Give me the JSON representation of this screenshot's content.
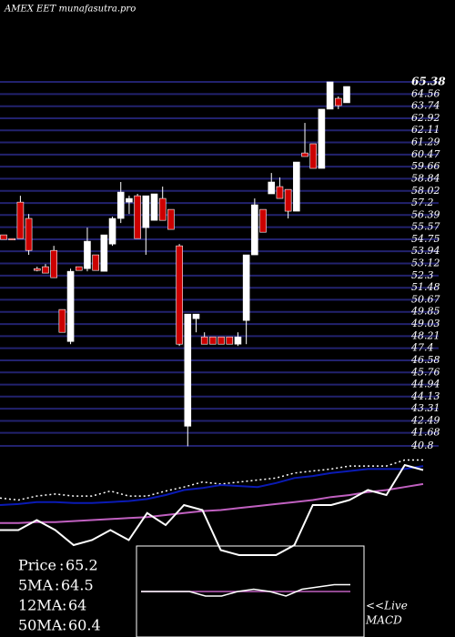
{
  "chart_data": {
    "type": "candlestick",
    "title": "AMEX  EET munafasutra.pro",
    "open": [
      55.05,
      54.8,
      57.26,
      56.16,
      52.77,
      52.9,
      54.0,
      50.01,
      47.85,
      52.9,
      52.77,
      53.7,
      52.59,
      54.43,
      56.16,
      57.26,
      57.69,
      55.54,
      56.03,
      57.51,
      56.77,
      54.31,
      42.13,
      49.39,
      48.16,
      48.16,
      48.16,
      48.16,
      47.67,
      49.27,
      53.7,
      56.77,
      57.82,
      58.31,
      58.12,
      56.65,
      60.58,
      61.2,
      59.54,
      63.54,
      64.27,
      63.97
    ],
    "high": [
      55.05,
      54.8,
      57.69,
      56.46,
      52.9,
      53.08,
      54.31,
      50.01,
      52.77,
      52.9,
      55.54,
      53.7,
      55.05,
      56.28,
      58.62,
      57.7,
      57.82,
      57.69,
      57.82,
      58.31,
      56.77,
      54.43,
      49.7,
      49.7,
      48.47,
      48.16,
      48.16,
      48.16,
      48.47,
      53.7,
      57.51,
      56.77,
      59.23,
      58.93,
      58.12,
      59.97,
      62.61,
      61.2,
      63.54,
      65.38,
      64.4,
      65.07
    ],
    "low": [
      54.74,
      54.74,
      54.8,
      53.7,
      52.59,
      52.47,
      52.16,
      48.47,
      47.67,
      52.65,
      52.59,
      52.65,
      52.59,
      54.31,
      55.85,
      56.46,
      54.8,
      53.7,
      56.03,
      56.03,
      55.42,
      47.55,
      40.78,
      48.47,
      47.67,
      47.67,
      47.67,
      47.67,
      47.55,
      47.67,
      53.7,
      55.23,
      57.82,
      57.51,
      56.16,
      56.65,
      60.34,
      59.54,
      59.54,
      63.54,
      63.54,
      63.97
    ],
    "close": [
      54.74,
      54.74,
      54.8,
      54.0,
      52.65,
      52.47,
      52.16,
      48.47,
      52.59,
      52.65,
      54.62,
      52.65,
      55.05,
      56.16,
      57.94,
      57.51,
      54.8,
      57.69,
      57.82,
      56.03,
      55.42,
      47.67,
      49.7,
      49.7,
      47.67,
      47.67,
      47.67,
      47.67,
      48.16,
      53.7,
      57.08,
      55.23,
      58.62,
      57.51,
      56.65,
      59.97,
      60.34,
      59.54,
      63.54,
      65.38,
      63.78,
      65.07
    ],
    "up_color": "#ffffff",
    "down_color": "#cc0000",
    "ylim": [
      40.8,
      65.38
    ],
    "yticks": [
      65.38,
      64.56,
      63.74,
      62.92,
      62.11,
      61.29,
      60.47,
      59.66,
      58.84,
      58.02,
      57.2,
      56.39,
      55.57,
      54.75,
      53.94,
      53.12,
      52.3,
      51.48,
      50.67,
      49.85,
      49.03,
      48.21,
      47.4,
      46.58,
      45.76,
      44.94,
      44.13,
      43.31,
      42.49,
      41.68,
      40.8
    ],
    "grid": true,
    "grid_color": "#22226e",
    "indicator": {
      "ylim": [
        0,
        100
      ],
      "categories": [
        null,
        null,
        null,
        null,
        null,
        null,
        null,
        null,
        null,
        null,
        null,
        null,
        null,
        null,
        null,
        null,
        null,
        null,
        null,
        null,
        null,
        null,
        null,
        null
      ],
      "series": [
        {
          "color": "#ffffff",
          "dash": true,
          "values": [
            57,
            55,
            59,
            61,
            59,
            59,
            64,
            59,
            59,
            64,
            68,
            73,
            71,
            73,
            75,
            77,
            82,
            84,
            86,
            89,
            89,
            89,
            95,
            95
          ]
        },
        {
          "color": "#0a1ab4",
          "values": [
            50,
            51,
            53,
            53,
            52,
            52,
            53,
            54,
            56,
            60,
            65,
            67,
            70,
            69,
            68,
            72,
            77,
            79,
            82,
            84,
            86,
            86,
            86,
            89
          ]
        },
        {
          "color": "#c060c0",
          "values": [
            32,
            32,
            33,
            33,
            34,
            35,
            36,
            37,
            38,
            40,
            42,
            44,
            45,
            47,
            49,
            51,
            53,
            55,
            58,
            60,
            63,
            65,
            68,
            71
          ]
        },
        {
          "color": "#ffffff",
          "values": [
            25,
            25,
            35,
            25,
            10,
            15,
            25,
            15,
            42,
            30,
            50,
            45,
            5,
            0,
            0,
            0,
            10,
            50,
            50,
            55,
            65,
            60,
            90,
            85
          ]
        }
      ]
    },
    "macd": {
      "ylim": [
        -10,
        10
      ],
      "series": [
        {
          "color": "#c060c0",
          "values": [
            0,
            0,
            0,
            0,
            0,
            0,
            0,
            0,
            0,
            0,
            0,
            0,
            0,
            0
          ]
        },
        {
          "color": "#ffffff",
          "values": [
            0,
            0,
            0,
            0,
            -2,
            -2,
            0,
            1,
            0,
            -2,
            1,
            2,
            3,
            3
          ]
        }
      ]
    },
    "legend": {
      "price_label": "Price",
      "price": 65.2,
      "ma5_label": "5MA",
      "ma5": 64.5,
      "ma12_label": "12MA",
      "ma12": 64,
      "ma50_label": "50MA",
      "ma50": 60.4,
      "live": "<<Live",
      "macd": "MACD"
    }
  }
}
